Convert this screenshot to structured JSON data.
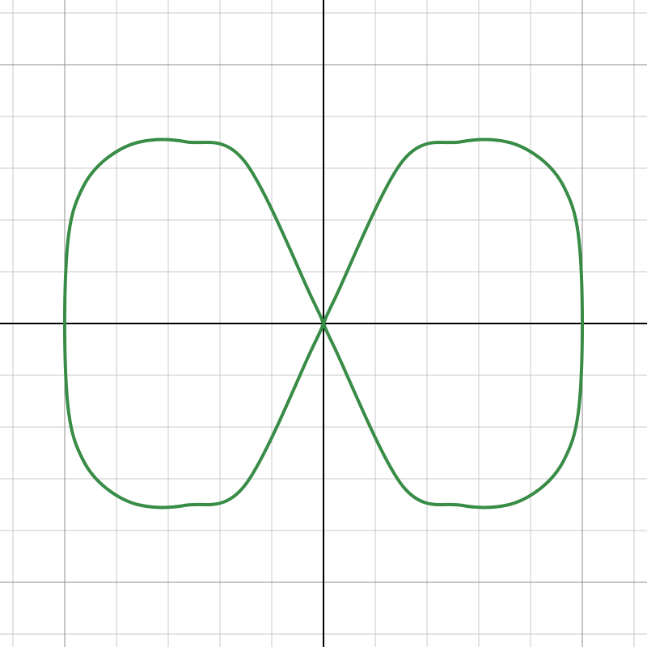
{
  "chart_data": {
    "type": "line",
    "title": "",
    "xlabel": "",
    "ylabel": "",
    "xlim": [
      -6.25,
      6.25
    ],
    "ylim": [
      -6.25,
      6.25
    ],
    "grid": true,
    "grid_major_step": 5,
    "grid_minor_step": 1,
    "axes_through_origin": true,
    "series": [
      {
        "color": "#388c46",
        "x": [
          5,
          4.92,
          4.65,
          4.2,
          3.54,
          2.65,
          1.53,
          0.21,
          0,
          -0.21,
          -1.53,
          -2.65,
          -3.54,
          -4.2,
          -4.65,
          -4.92,
          -5,
          -4.92,
          -4.65,
          -4.2,
          -3.54,
          -2.65,
          -1.53,
          -0.21,
          0,
          0.21,
          1.53,
          2.65,
          3.54,
          4.2,
          4.65,
          4.92,
          5
        ],
        "y": [
          0,
          -1.74,
          -2.63,
          -3.18,
          -3.51,
          -3.51,
          -3.14,
          -0.46,
          0,
          0.46,
          3.14,
          3.51,
          3.51,
          3.18,
          2.63,
          1.74,
          0,
          -1.74,
          -2.63,
          -3.18,
          -3.51,
          -3.51,
          -3.14,
          -0.46,
          0,
          0.46,
          3.14,
          3.51,
          3.51,
          3.18,
          2.63,
          1.74,
          0
        ]
      }
    ]
  },
  "colors": {
    "curve": "#388c46",
    "axis": "#000000",
    "grid_major": "#8c8c8c",
    "grid_minor": "#c8c8c8",
    "background": "#ffffff"
  }
}
